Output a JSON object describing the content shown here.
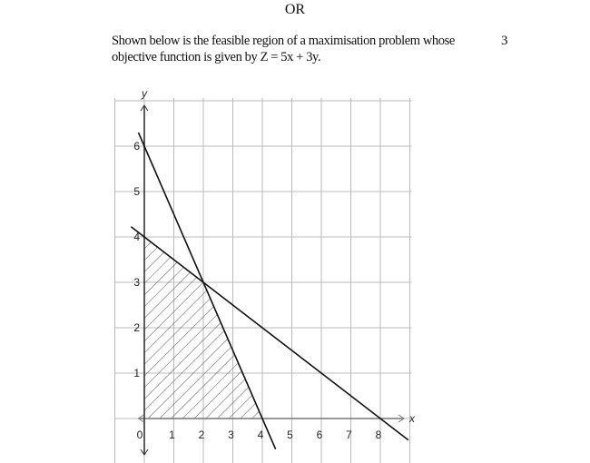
{
  "heading": "OR",
  "question": {
    "text_line1": "Shown below is the feasible region of a maximisation problem whose",
    "text_line2": "objective function is given by Z = 5x + 3y.",
    "marks": "3"
  },
  "graph": {
    "x_axis_label": "x",
    "y_axis_label": "y",
    "x_tick_labels": [
      "0",
      "1",
      "2",
      "3",
      "4",
      "5",
      "6",
      "7",
      "8"
    ],
    "y_tick_labels": [
      "1",
      "2",
      "3",
      "4",
      "5",
      "6"
    ],
    "x_range": [
      -1,
      9
    ],
    "y_range": [
      -1,
      7
    ],
    "grid": true,
    "lines": [
      {
        "equation": "3x + 2y = 12",
        "points": [
          [
            0,
            6
          ],
          [
            4,
            0
          ]
        ]
      },
      {
        "equation": "x + 2y = 8",
        "points": [
          [
            0,
            4
          ],
          [
            8,
            0
          ]
        ]
      }
    ],
    "feasible_region": [
      [
        0,
        0
      ],
      [
        4,
        0
      ],
      [
        2,
        3
      ],
      [
        0,
        4
      ]
    ],
    "feasible_region_fill": "hatched"
  }
}
